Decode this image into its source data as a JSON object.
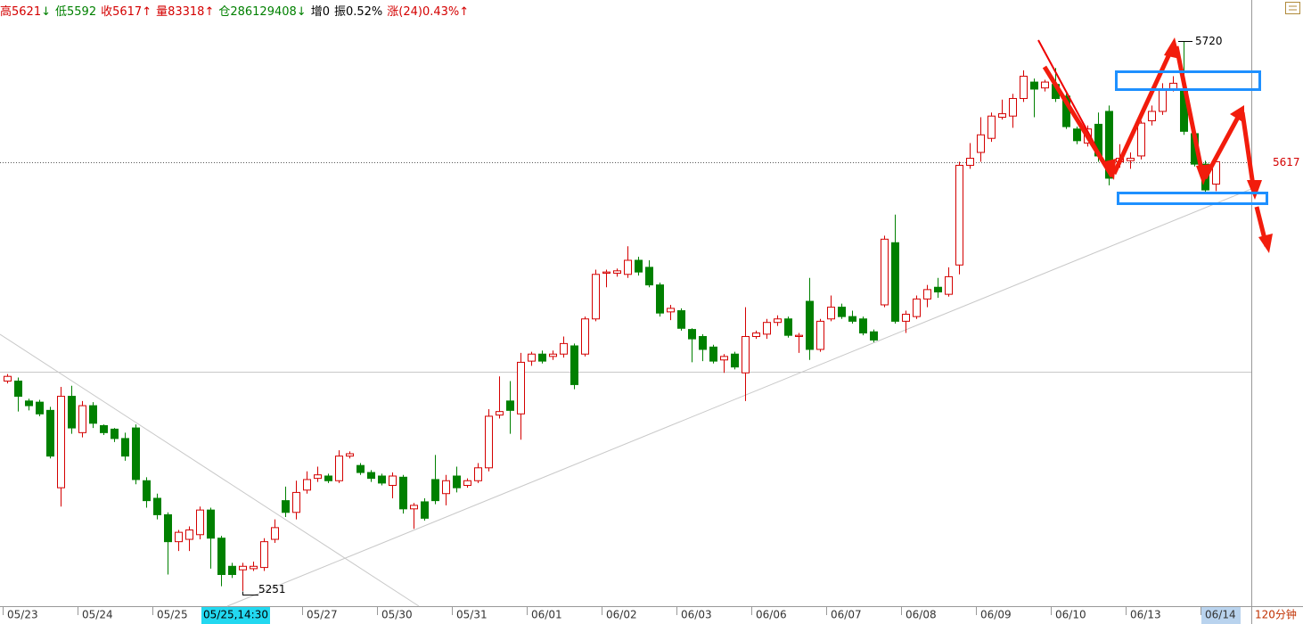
{
  "header": [
    {
      "text": "高5621",
      "color": "#d40000"
    },
    {
      "text": "↓",
      "color": "#008000"
    },
    {
      "text": "低5592",
      "color": "#008000"
    },
    {
      "text": "收5617",
      "color": "#d40000"
    },
    {
      "text": "↑",
      "color": "#d40000"
    },
    {
      "text": "量83318↑",
      "color": "#d40000"
    },
    {
      "text": "仓286129408↓",
      "color": "#008000"
    },
    {
      "text": "增0",
      "color": "#000000"
    },
    {
      "text": "振0.52%",
      "color": "#000000"
    },
    {
      "text": "涨(24)0.43%↑",
      "color": "#d40000"
    }
  ],
  "chart_data": {
    "type": "candlestick",
    "up_color": "#d40000",
    "down_color": "#008000",
    "ylim": [
      5238,
      5755
    ],
    "yticks": [
      5617
    ],
    "max_label": 5720,
    "min_label": 5251,
    "cursor_label": "05/25,14:30",
    "period_label": "120分钟",
    "categories": [
      "05/23",
      null,
      null,
      null,
      null,
      null,
      null,
      "05/24",
      null,
      null,
      null,
      null,
      null,
      null,
      "05/25",
      null,
      null,
      null,
      null,
      null,
      null,
      null,
      null,
      null,
      null,
      null,
      null,
      null,
      "05/27",
      null,
      null,
      null,
      null,
      null,
      null,
      "05/30",
      null,
      null,
      null,
      null,
      null,
      null,
      "05/31",
      null,
      null,
      null,
      null,
      null,
      null,
      "06/01",
      null,
      null,
      null,
      null,
      null,
      null,
      "06/02",
      null,
      null,
      null,
      null,
      null,
      null,
      "06/03",
      null,
      null,
      null,
      null,
      null,
      null,
      "06/06",
      null,
      null,
      null,
      null,
      null,
      null,
      "06/07",
      null,
      null,
      null,
      null,
      null,
      null,
      "06/08",
      null,
      null,
      null,
      null,
      null,
      null,
      "06/09",
      null,
      null,
      null,
      null,
      null,
      null,
      "06/10",
      null,
      null,
      null,
      null,
      null,
      null,
      "06/13",
      null,
      null,
      null,
      null,
      null,
      null,
      "06/14",
      null
    ],
    "open": [
      5430,
      5430,
      5413,
      5412,
      5405,
      5339,
      5417,
      5386,
      5409,
      5392,
      5389,
      5381,
      5390,
      5345,
      5330,
      5316,
      5293,
      5295,
      5299,
      5320,
      5296,
      5272,
      5269,
      5270,
      5271,
      5295,
      5328,
      5318,
      5337,
      5347,
      5349,
      5345,
      5366,
      5358,
      5352,
      5349,
      5341,
      5348,
      5321,
      5327,
      5346,
      5334,
      5349,
      5341,
      5345,
      5356,
      5401,
      5413,
      5402,
      5447,
      5453,
      5451,
      5453,
      5460,
      5453,
      5483,
      5522,
      5522,
      5521,
      5533,
      5527,
      5512,
      5489,
      5490,
      5474,
      5468,
      5459,
      5448,
      5453,
      5437,
      5468,
      5470,
      5480,
      5483,
      5468,
      5498,
      5457,
      5483,
      5493,
      5485,
      5483,
      5472,
      5495,
      5548,
      5481,
      5485,
      5500,
      5510,
      5504,
      5529,
      5614,
      5625,
      5637,
      5655,
      5656,
      5671,
      5685,
      5680,
      5683,
      5673,
      5645,
      5633,
      5649,
      5660,
      5617,
      5618,
      5622,
      5652,
      5660,
      5679,
      5679,
      5641,
      5615,
      5598
    ],
    "high": [
      5436,
      5433,
      5415,
      5414,
      5408,
      5425,
      5426,
      5413,
      5412,
      5393,
      5390,
      5386,
      5393,
      5348,
      5334,
      5318,
      5303,
      5306,
      5323,
      5322,
      5298,
      5275,
      5275,
      5276,
      5296,
      5312,
      5340,
      5345,
      5353,
      5357,
      5351,
      5371,
      5370,
      5360,
      5354,
      5351,
      5352,
      5350,
      5326,
      5330,
      5367,
      5350,
      5357,
      5347,
      5360,
      5406,
      5434,
      5430,
      5454,
      5455,
      5456,
      5456,
      5468,
      5462,
      5485,
      5525,
      5525,
      5526,
      5545,
      5536,
      5533,
      5514,
      5495,
      5492,
      5475,
      5470,
      5461,
      5453,
      5455,
      5493,
      5473,
      5483,
      5486,
      5485,
      5471,
      5518,
      5483,
      5503,
      5496,
      5490,
      5485,
      5474,
      5554,
      5572,
      5490,
      5503,
      5512,
      5518,
      5527,
      5617,
      5633,
      5655,
      5659,
      5670,
      5675,
      5695,
      5688,
      5687,
      5697,
      5675,
      5647,
      5648,
      5659,
      5665,
      5632,
      5625,
      5652,
      5665,
      5684,
      5690,
      5720,
      5645,
      5618,
      5621
    ],
    "low": [
      5428,
      5404,
      5405,
      5400,
      5364,
      5323,
      5385,
      5382,
      5390,
      5384,
      5378,
      5362,
      5342,
      5322,
      5312,
      5265,
      5285,
      5285,
      5295,
      5270,
      5255,
      5262,
      5251,
      5268,
      5268,
      5292,
      5314,
      5312,
      5334,
      5344,
      5343,
      5343,
      5364,
      5350,
      5344,
      5341,
      5330,
      5317,
      5304,
      5311,
      5325,
      5324,
      5335,
      5339,
      5343,
      5353,
      5398,
      5385,
      5380,
      5443,
      5445,
      5448,
      5450,
      5423,
      5451,
      5481,
      5510,
      5519,
      5518,
      5520,
      5510,
      5485,
      5482,
      5473,
      5446,
      5447,
      5445,
      5437,
      5440,
      5413,
      5466,
      5466,
      5477,
      5467,
      5454,
      5448,
      5455,
      5481,
      5483,
      5479,
      5469,
      5463,
      5493,
      5479,
      5471,
      5483,
      5493,
      5501,
      5502,
      5521,
      5611,
      5617,
      5634,
      5653,
      5646,
      5668,
      5655,
      5677,
      5668,
      5645,
      5632,
      5630,
      5617,
      5597,
      5612,
      5611,
      5619,
      5648,
      5657,
      5677,
      5640,
      5613,
      5590,
      5592
    ],
    "close": [
      5434,
      5417,
      5409,
      5402,
      5366,
      5417,
      5390,
      5409,
      5394,
      5386,
      5381,
      5366,
      5346,
      5328,
      5316,
      5293,
      5301,
      5303,
      5320,
      5296,
      5265,
      5265,
      5272,
      5272,
      5293,
      5305,
      5318,
      5335,
      5346,
      5350,
      5345,
      5366,
      5368,
      5352,
      5347,
      5343,
      5349,
      5321,
      5324,
      5313,
      5328,
      5345,
      5339,
      5345,
      5356,
      5400,
      5404,
      5405,
      5446,
      5453,
      5447,
      5453,
      5462,
      5427,
      5483,
      5521,
      5523,
      5524,
      5533,
      5523,
      5512,
      5488,
      5492,
      5475,
      5466,
      5457,
      5447,
      5451,
      5442,
      5468,
      5471,
      5480,
      5483,
      5469,
      5469,
      5457,
      5481,
      5493,
      5485,
      5481,
      5471,
      5465,
      5551,
      5481,
      5487,
      5500,
      5508,
      5506,
      5519,
      5614,
      5620,
      5640,
      5656,
      5658,
      5671,
      5690,
      5679,
      5685,
      5671,
      5647,
      5635,
      5645,
      5622,
      5603,
      5620,
      5620,
      5650,
      5660,
      5679,
      5684,
      5643,
      5615,
      5593,
      5617
    ]
  }
}
